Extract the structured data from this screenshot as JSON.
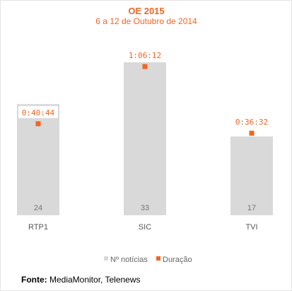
{
  "colors": {
    "bar": "#d9d9d9",
    "marker": "#f26522",
    "title": "#f26522"
  },
  "chart_data": {
    "type": "bar",
    "title": "OE 2015",
    "subtitle": "6 a 12 de Outubro de 2014",
    "categories": [
      "RTP1",
      "SIC",
      "TVI"
    ],
    "series": [
      {
        "name": "Nº notícias",
        "type": "bar",
        "values": [
          24,
          33,
          17
        ]
      },
      {
        "name": "Duração",
        "type": "scatter",
        "values": [
          "0:40:44",
          "1:06:12",
          "0:36:32"
        ]
      }
    ],
    "legend_position": "bottom",
    "grid": false
  },
  "source": {
    "label": "Fonte:",
    "text": " MediaMonitor, Telenews"
  }
}
